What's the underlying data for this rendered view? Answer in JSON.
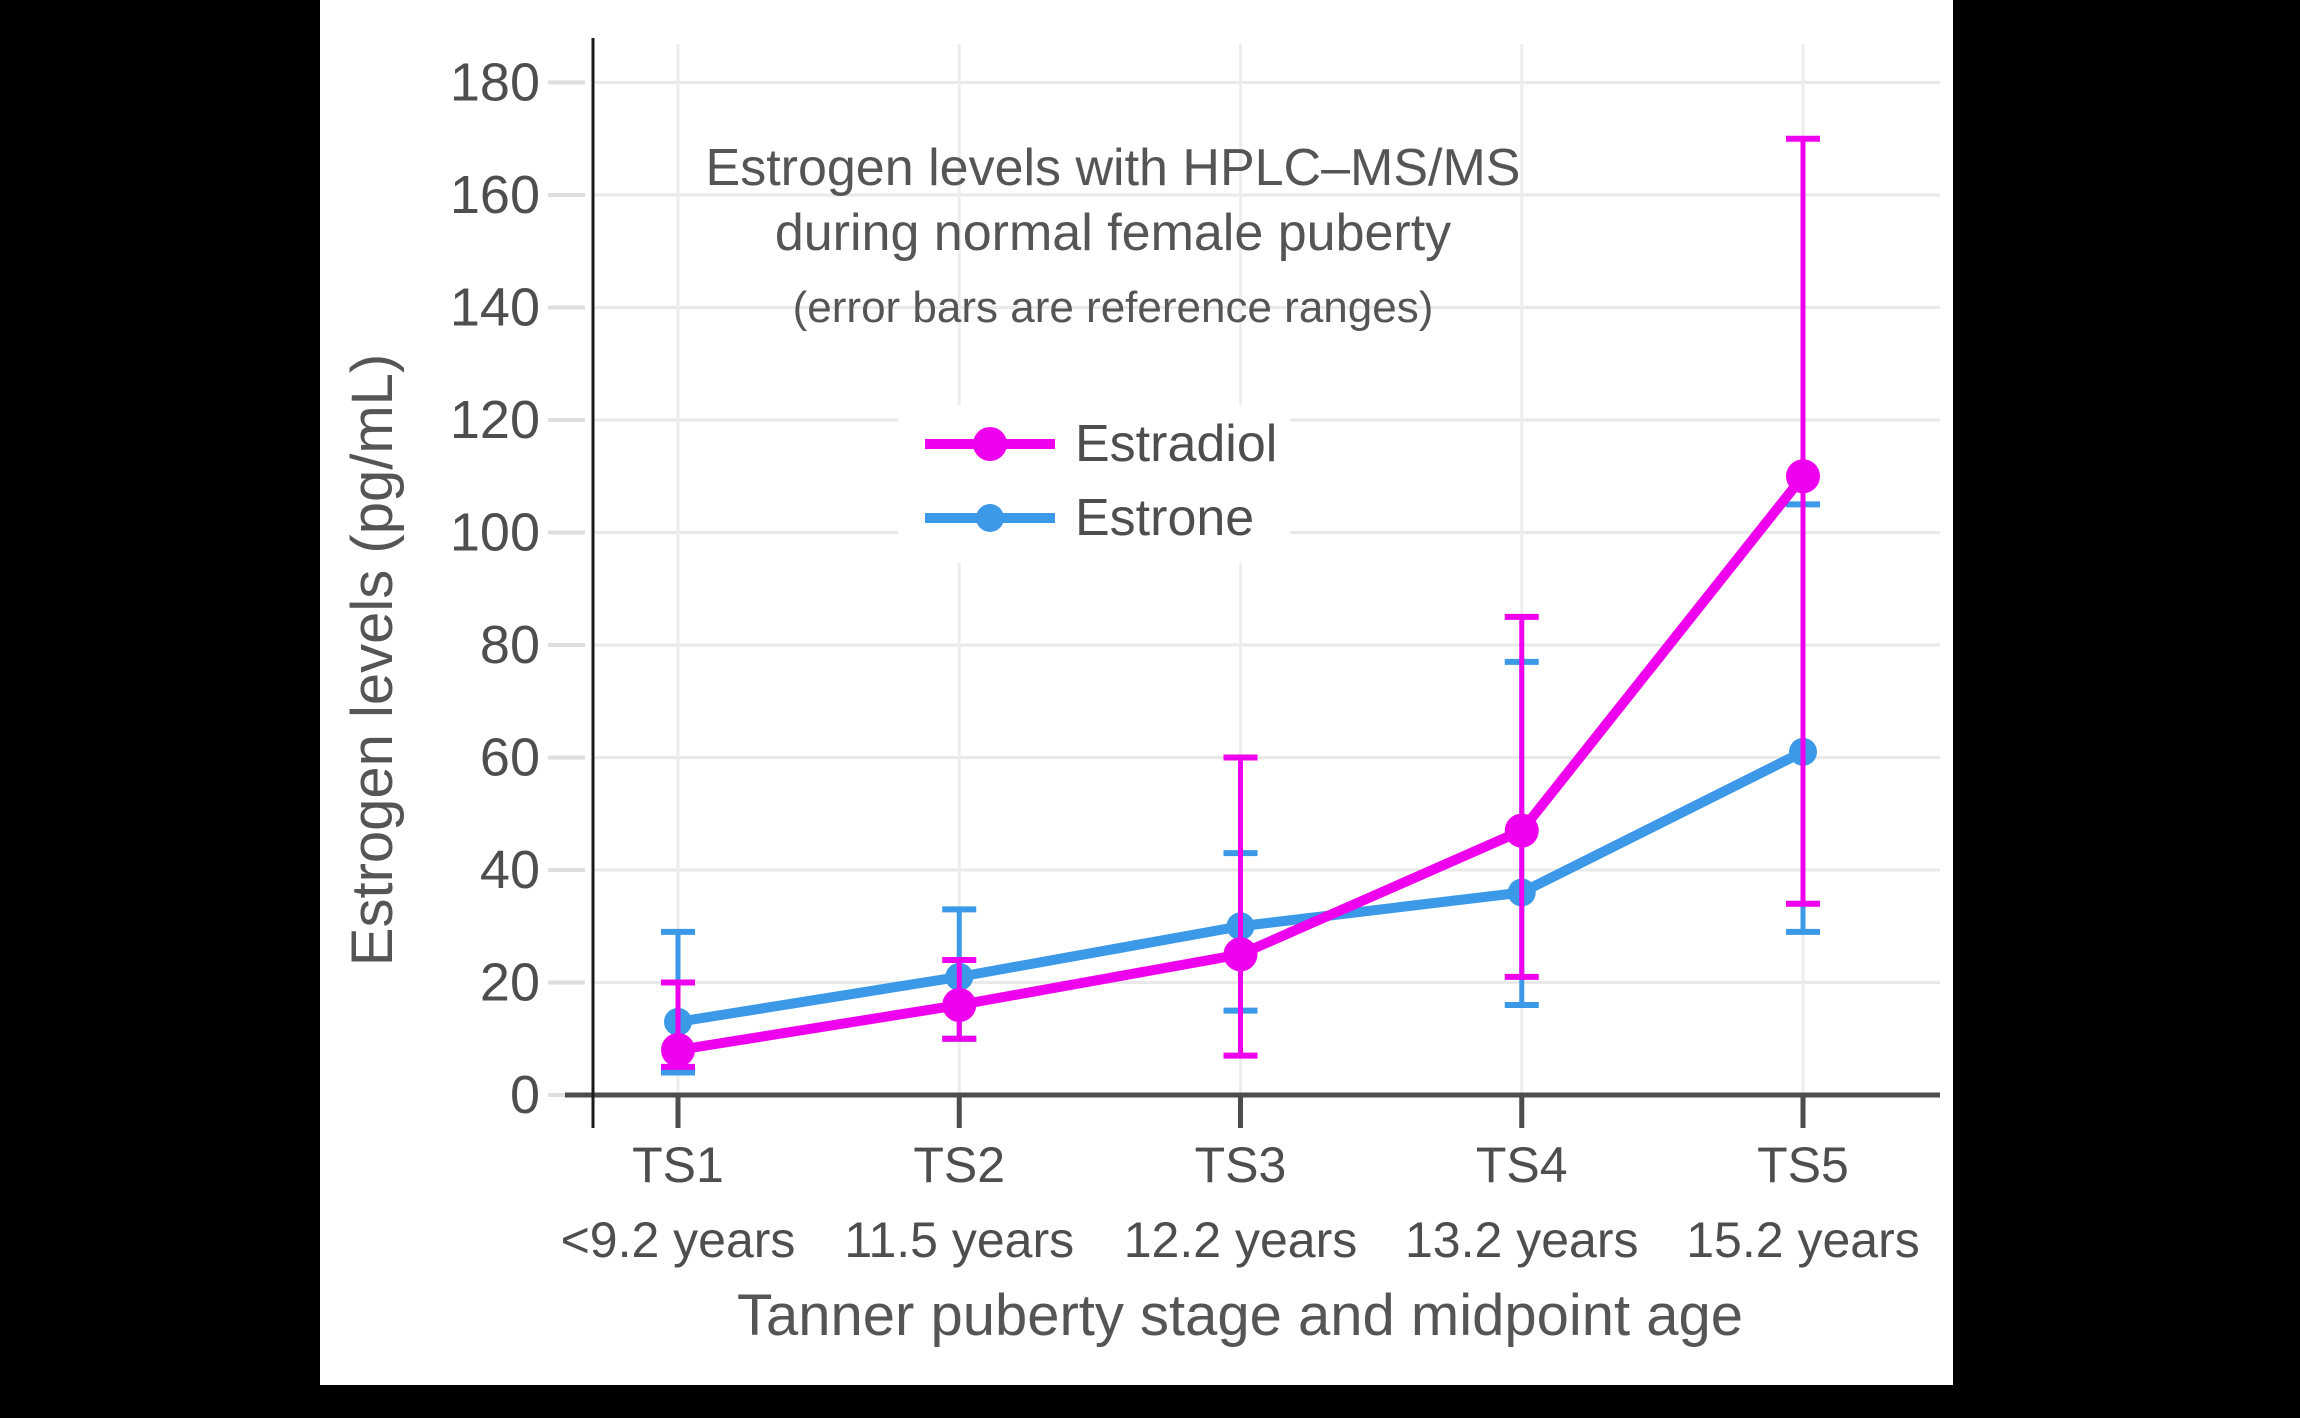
{
  "page": {
    "background_color": "#000000",
    "panel_color": "#ffffff",
    "text_color": "#4e4e4e",
    "title_color": "#555555",
    "grid_color": "#e9e9e9",
    "axis_color": "#4d4d4d"
  },
  "chart_data": {
    "type": "line",
    "title_line1": "Estrogen levels with HPLC–MS/MS",
    "title_line2": "during normal female puberty",
    "subtitle": "(error bars are reference ranges)",
    "xlabel": "Tanner puberty stage and midpoint age",
    "ylabel": "Estrogen levels (pg/mL)",
    "categories": [
      "TS1",
      "TS2",
      "TS3",
      "TS4",
      "TS5"
    ],
    "category_sublabels": [
      "<9.2 years",
      "11.5 years",
      "12.2 years",
      "13.2 years",
      "15.2 years"
    ],
    "ylim": [
      0,
      180
    ],
    "ytick_step": 20,
    "grid": true,
    "legend_position": "upper-center-inside",
    "error_bars": "reference ranges",
    "series": [
      {
        "name": "Estradiol",
        "color": "#ee00ee",
        "values": [
          8,
          16,
          25,
          47,
          110
        ],
        "error_low": [
          5,
          10,
          7,
          21,
          34
        ],
        "error_high": [
          20,
          24,
          60,
          85,
          170
        ]
      },
      {
        "name": "Estrone",
        "color": "#3b99e8",
        "values": [
          13,
          21,
          30,
          36,
          61
        ],
        "error_low": [
          4,
          10,
          15,
          16,
          29
        ],
        "error_high": [
          29,
          33,
          43,
          77,
          105
        ]
      }
    ]
  }
}
